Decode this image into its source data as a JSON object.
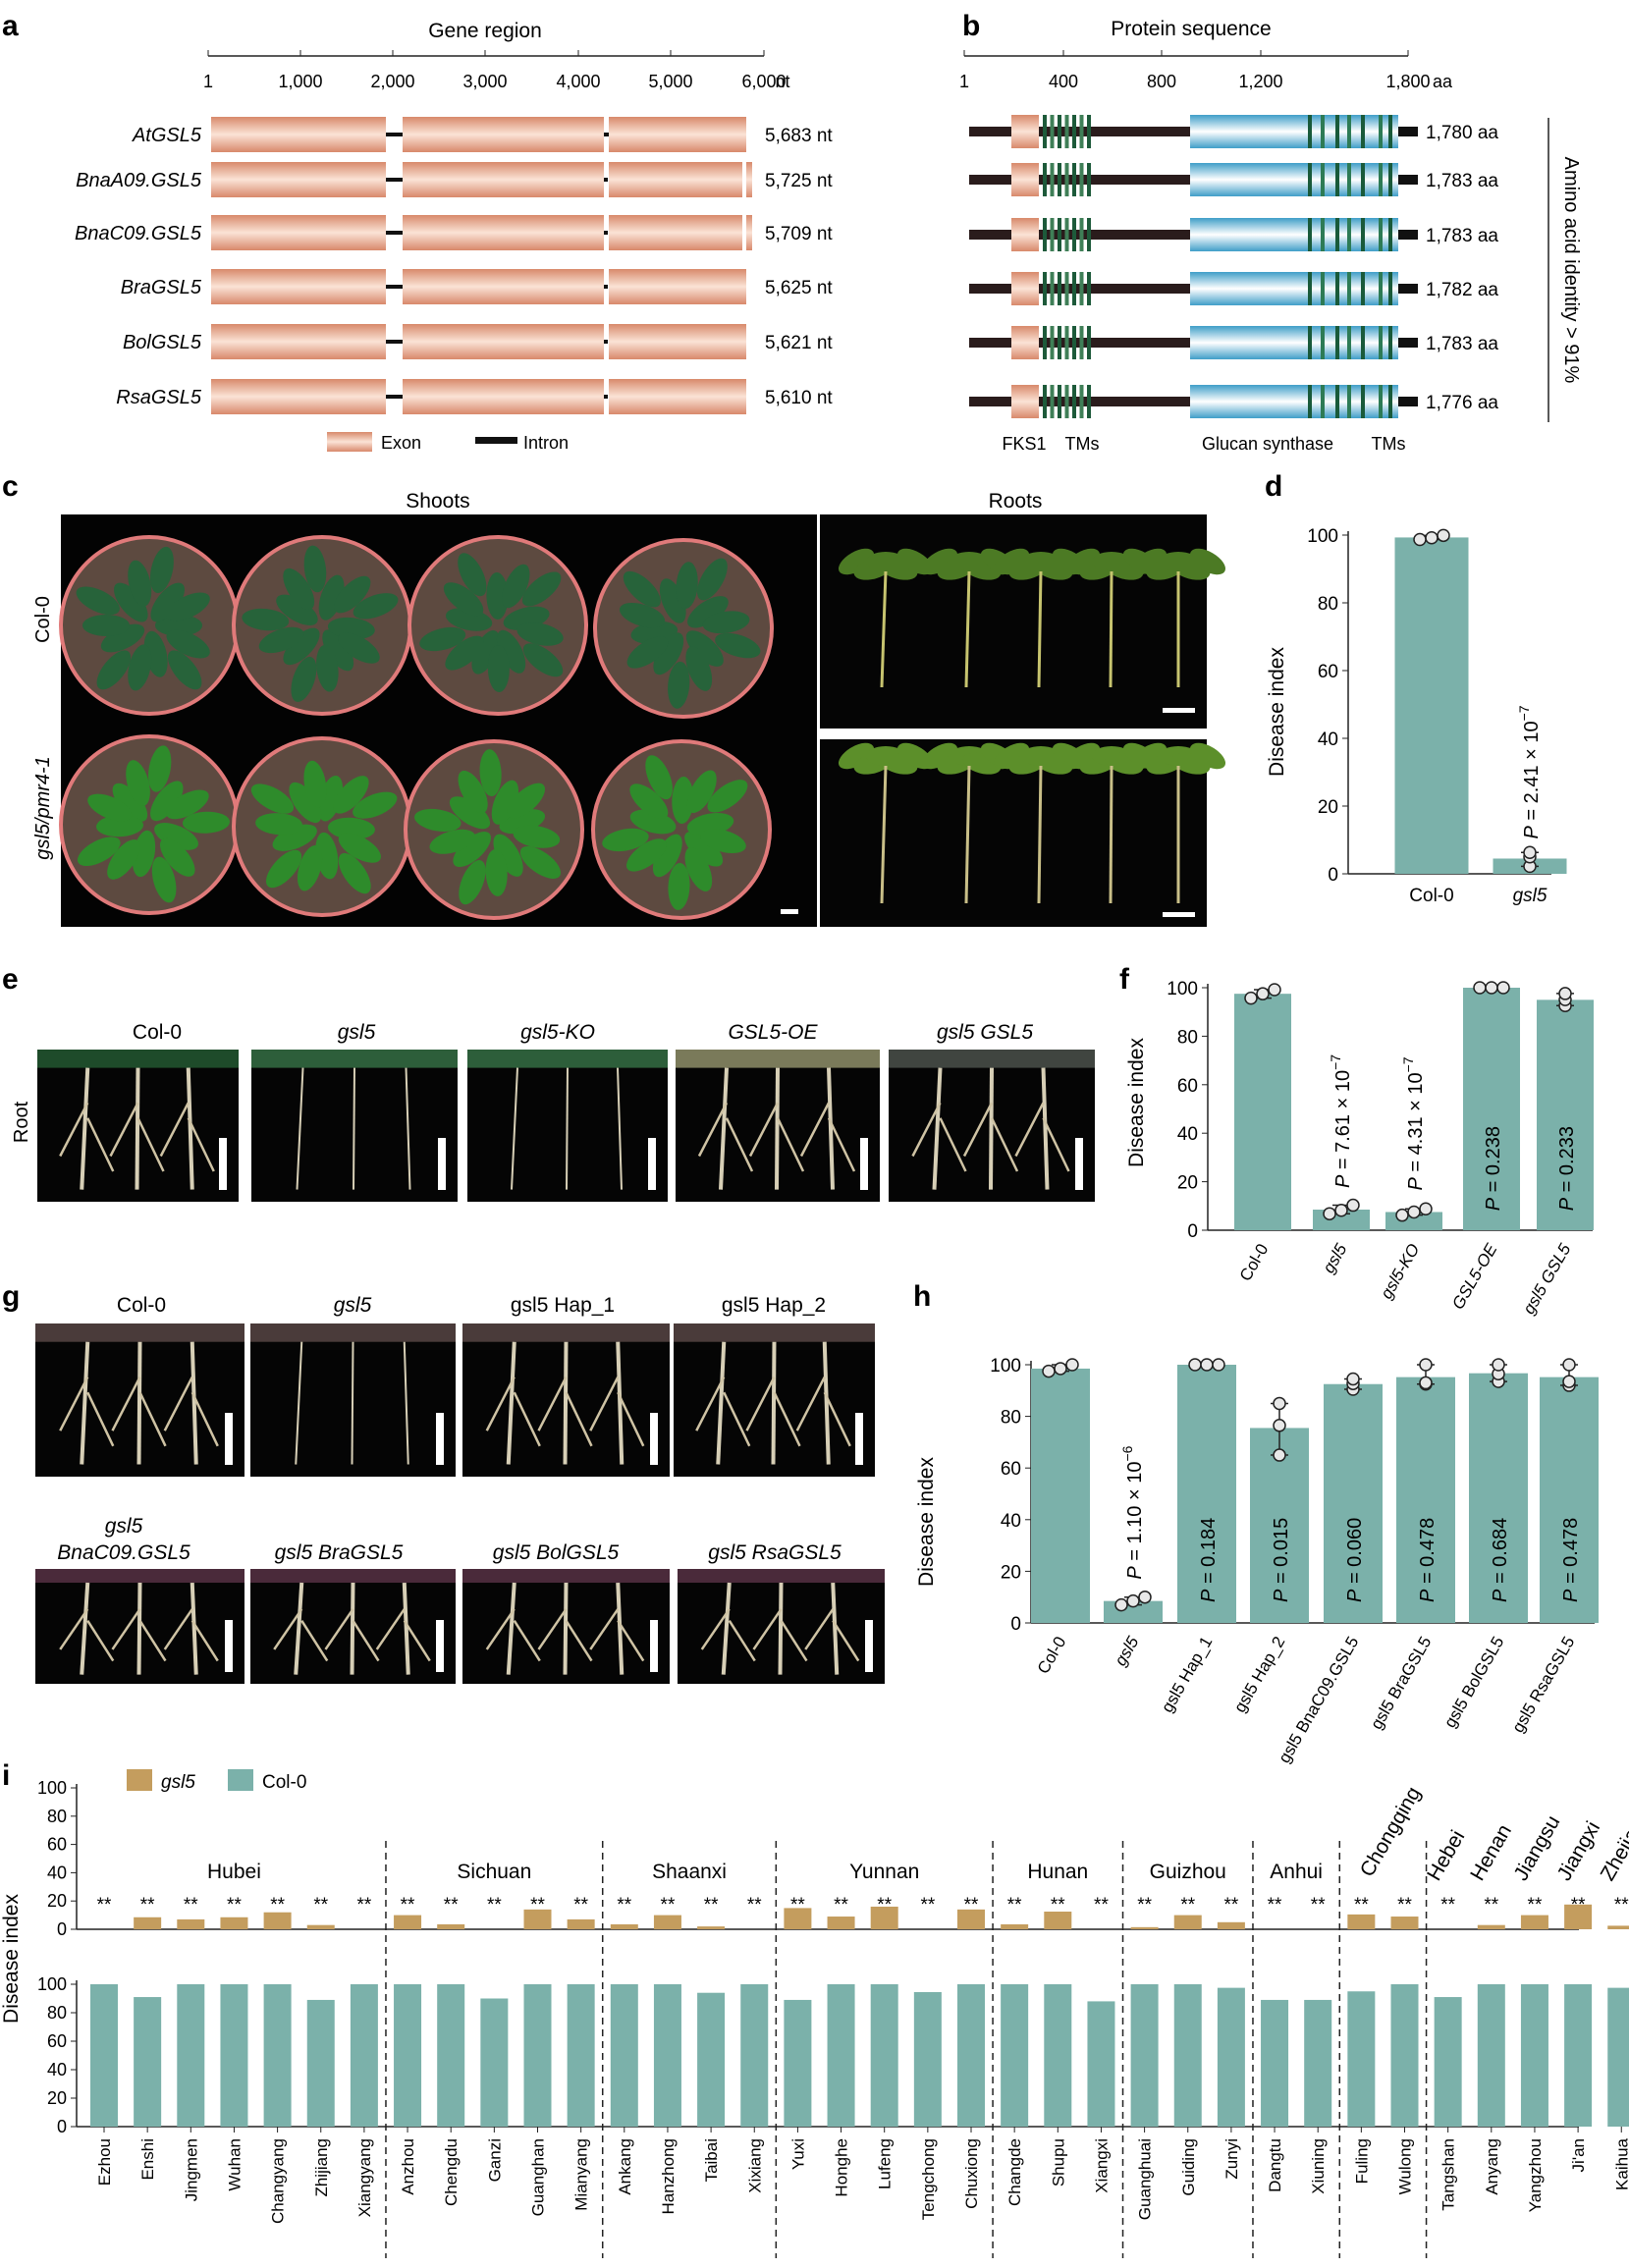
{
  "panel_letters": {
    "a": "a",
    "b": "b",
    "c": "c",
    "d": "d",
    "e": "e",
    "f": "f",
    "g": "g",
    "h": "h",
    "i": "i"
  },
  "panel_a": {
    "title": "Gene region",
    "ticks": [
      "1",
      "1,000",
      "2,000",
      "3,000",
      "4,000",
      "5,000",
      "6,000"
    ],
    "unit": "nt",
    "genes": [
      {
        "name": "AtGSL5",
        "length": "5,683 nt",
        "extra": false
      },
      {
        "name": "BnaA09.GSL5",
        "length": "5,725 nt",
        "extra": true
      },
      {
        "name": "BnaC09.GSL5",
        "length": "5,709 nt",
        "extra": true
      },
      {
        "name": "BraGSL5",
        "length": "5,625 nt",
        "extra": false
      },
      {
        "name": "BolGSL5",
        "length": "5,621 nt",
        "extra": false
      },
      {
        "name": "RsaGSL5",
        "length": "5,610 nt",
        "extra": false
      }
    ],
    "legend": {
      "exon": "Exon",
      "intron": "Intron"
    }
  },
  "panel_b": {
    "title": "Protein sequence",
    "ticks": [
      "1",
      "400",
      "800",
      "1,200",
      "1,800"
    ],
    "unit": "aa",
    "proteins": [
      "1,780 aa",
      "1,783 aa",
      "1,783 aa",
      "1,782 aa",
      "1,783 aa",
      "1,776 aa"
    ],
    "domains": [
      "FKS1",
      "TMs",
      "Glucan synthase",
      "TMs"
    ],
    "identity": "Amino acid identity > 91%"
  },
  "panel_c": {
    "shoots": "Shoots",
    "roots": "Roots",
    "rows": [
      "Col-0",
      "gsl5/pmr4-1"
    ]
  },
  "panel_d": {
    "ylabel": "Disease index",
    "yticks": [
      "0",
      "20",
      "40",
      "60",
      "80",
      "100"
    ],
    "categories": [
      "Col-0",
      "gsl5"
    ],
    "pvalue": "P = 2.41 × 10",
    "pexp": "−7"
  },
  "panel_e": {
    "row_label": "Root",
    "labels": [
      "Col-0",
      "gsl5",
      "gsl5-KO",
      "GSL5-OE",
      "gsl5 GSL5"
    ]
  },
  "panel_f": {
    "ylabel": "Disease index",
    "yticks": [
      "0",
      "20",
      "40",
      "60",
      "80",
      "100"
    ],
    "categories": [
      "Col-0",
      "gsl5",
      "gsl5-KO",
      "GSL5-OE",
      "gsl5 GSL5"
    ],
    "pvalues": [
      {
        "text": "",
        "exp": ""
      },
      {
        "text": "P = 7.61 × 10",
        "exp": "−7"
      },
      {
        "text": "P = 4.31 × 10",
        "exp": "−7"
      },
      {
        "text": "P = 0.238",
        "exp": ""
      },
      {
        "text": "P = 0.233",
        "exp": ""
      }
    ]
  },
  "panel_g": {
    "top": [
      "Col-0",
      "gsl5",
      "gsl5 Hap_1",
      "gsl5 Hap_2"
    ],
    "bottom": [
      "gsl5",
      "BnaC09.GSL5",
      "gsl5 BraGSL5",
      "gsl5 BolGSL5",
      "gsl5 RsaGSL5"
    ]
  },
  "panel_h": {
    "ylabel": "Disease index",
    "yticks": [
      "0",
      "20",
      "40",
      "60",
      "80",
      "100"
    ],
    "categories": [
      "Col-0",
      "gsl5",
      "gsl5 Hap_1",
      "gsl5 Hap_2",
      "gsl5 BnaC09.GSL5",
      "gsl5 BraGSL5",
      "gsl5 BolGSL5",
      "gsl5 RsaGSL5"
    ],
    "pvalues": [
      {
        "text": "",
        "exp": ""
      },
      {
        "text": "P = 1.10 × 10",
        "exp": "−6"
      },
      {
        "text": "P = 0.184",
        "exp": ""
      },
      {
        "text": "P = 0.015",
        "exp": ""
      },
      {
        "text": "P = 0.060",
        "exp": ""
      },
      {
        "text": "P = 0.478",
        "exp": ""
      },
      {
        "text": "P = 0.684",
        "exp": ""
      },
      {
        "text": "P = 0.478",
        "exp": ""
      }
    ]
  },
  "panel_i": {
    "ylabel": "Disease index",
    "legend": [
      "gsl5",
      "Col-0"
    ],
    "yticks_top": [
      "0",
      "20",
      "40",
      "60",
      "80",
      "100"
    ],
    "yticks_bottom": [
      "0",
      "20",
      "40",
      "60",
      "80",
      "100"
    ],
    "stars": "**",
    "provinces": [
      {
        "name": "Hubei",
        "cities": [
          "Ezhou",
          "Enshi",
          "Jingmen",
          "Wuhan",
          "Changyang",
          "Zhijiang",
          "Xiangyang"
        ]
      },
      {
        "name": "Sichuan",
        "cities": [
          "Anzhou",
          "Chengdu",
          "Ganzi",
          "Guanghan",
          "Mianyang"
        ]
      },
      {
        "name": "Shaanxi",
        "cities": [
          "Ankang",
          "Hanzhong",
          "Taibai",
          "Xixiang"
        ]
      },
      {
        "name": "Yunnan",
        "cities": [
          "Yuxi",
          "Honghe",
          "Lufeng",
          "Tengchong",
          "Chuxiong"
        ]
      },
      {
        "name": "Hunan",
        "cities": [
          "Changde",
          "Shupu",
          "Xiangxi"
        ]
      },
      {
        "name": "Guizhou",
        "cities": [
          "Guanghuai",
          "Guiding",
          "Zunyi"
        ]
      },
      {
        "name": "Anhui",
        "cities": [
          "Dangtu",
          "Xiuning"
        ]
      },
      {
        "name": "Chongqing",
        "cities": [
          "Fuling",
          "Wulong"
        ]
      }
    ],
    "rotated_provinces": [
      "Hebei",
      "Henan",
      "Jiangsu",
      "Jiangxi",
      "Zhejiang"
    ],
    "rotated_cities": [
      "Tangshan",
      "Anyang",
      "Yangzhou",
      "Ji'an",
      "Kaihua"
    ]
  },
  "colors": {
    "teal": "#7bb1aa",
    "gold": "#c49d5e",
    "exon": "#e4a98c",
    "intron": "#111111",
    "blue": "#74b7d4"
  },
  "chart_data": [
    {
      "type": "bar",
      "id": "d",
      "categories": [
        "Col-0",
        "gsl5"
      ],
      "values": [
        99.3,
        4.5
      ],
      "points": [
        [
          98.7,
          99.2,
          99.9
        ],
        [
          2.2,
          5.0,
          6.3
        ]
      ],
      "ylim": [
        0,
        100
      ],
      "ylabel": "Disease index"
    },
    {
      "type": "bar",
      "id": "f",
      "categories": [
        "Col-0",
        "gsl5",
        "gsl5-KO",
        "GSL5-OE",
        "gsl5 GSL5"
      ],
      "values": [
        97.5,
        8.5,
        7.5,
        100,
        95
      ],
      "points": [
        [
          95.7,
          97.5,
          99.2
        ],
        [
          6.8,
          8.2,
          10.3
        ],
        [
          6.2,
          7.5,
          8.8
        ],
        [
          100,
          100,
          100
        ],
        [
          92.6,
          95.1,
          97.6
        ]
      ],
      "ylim": [
        0,
        100
      ],
      "ylabel": "Disease index"
    },
    {
      "type": "bar",
      "id": "h",
      "categories": [
        "Col-0",
        "gsl5",
        "gsl5 Hap_1",
        "gsl5 Hap_2",
        "gsl5 BnaC09.GSL5",
        "gsl5 BraGSL5",
        "gsl5 BolGSL5",
        "gsl5 RsaGSL5"
      ],
      "values": [
        98.5,
        8.5,
        100,
        75.5,
        92.5,
        95.2,
        96.7,
        95.2
      ],
      "points": [
        [
          97.5,
          98.5,
          100
        ],
        [
          7,
          8.5,
          10
        ],
        [
          100,
          100,
          100
        ],
        [
          65,
          76.5,
          85
        ],
        [
          90.5,
          92.7,
          94.5
        ],
        [
          92.5,
          93,
          100
        ],
        [
          93.5,
          96.5,
          100
        ],
        [
          92,
          93.5,
          100
        ]
      ],
      "ylim": [
        0,
        100
      ],
      "ylabel": "Disease index"
    },
    {
      "type": "bar",
      "id": "i-gsl5",
      "series_name": "gsl5",
      "categories": [
        "Ezhou",
        "Enshi",
        "Jingmen",
        "Wuhan",
        "Changyang",
        "Zhijiang",
        "Xiangyang",
        "Anzhou",
        "Chengdu",
        "Ganzi",
        "Guanghan",
        "Mianyang",
        "Ankang",
        "Hanzhong",
        "Taibai",
        "Xixiang",
        "Yuxi",
        "Honghe",
        "Lufeng",
        "Tengchong",
        "Chuxiong",
        "Changde",
        "Shupu",
        "Xiangxi",
        "Guanghuai",
        "Guiding",
        "Zunyi",
        "Dangtu",
        "Xiuning",
        "Fuling",
        "Wulong",
        "Tangshan",
        "Anyang",
        "Yangzhou",
        "Ji'an",
        "Kaihua"
      ],
      "values": [
        0,
        8.5,
        7,
        8.5,
        12,
        3,
        0,
        10,
        3.5,
        0,
        14,
        7,
        3.5,
        10,
        2,
        0,
        15,
        9,
        16,
        0,
        14,
        3.5,
        12.5,
        0,
        1.5,
        10,
        5,
        0,
        0,
        10.5,
        9,
        0,
        3,
        10,
        17.5,
        2.5
      ],
      "ylim": [
        0,
        100
      ]
    },
    {
      "type": "bar",
      "id": "i-col0",
      "series_name": "Col-0",
      "categories": [
        "Ezhou",
        "Enshi",
        "Jingmen",
        "Wuhan",
        "Changyang",
        "Zhijiang",
        "Xiangyang",
        "Anzhou",
        "Chengdu",
        "Ganzi",
        "Guanghan",
        "Mianyang",
        "Ankang",
        "Hanzhong",
        "Taibai",
        "Xixiang",
        "Yuxi",
        "Honghe",
        "Lufeng",
        "Tengchong",
        "Chuxiong",
        "Changde",
        "Shupu",
        "Xiangxi",
        "Guanghuai",
        "Guiding",
        "Zunyi",
        "Dangtu",
        "Xiuning",
        "Fuling",
        "Wulong",
        "Tangshan",
        "Anyang",
        "Yangzhou",
        "Ji'an",
        "Kaihua"
      ],
      "values": [
        100,
        91,
        100,
        100,
        100,
        89,
        100,
        100,
        100,
        90,
        100,
        100,
        100,
        100,
        94,
        100,
        89,
        100,
        100,
        94.5,
        100,
        100,
        100,
        88,
        100,
        100,
        97.5,
        89,
        89,
        95,
        100,
        91,
        100,
        100,
        100,
        97.5
      ],
      "ylim": [
        0,
        100
      ]
    }
  ]
}
